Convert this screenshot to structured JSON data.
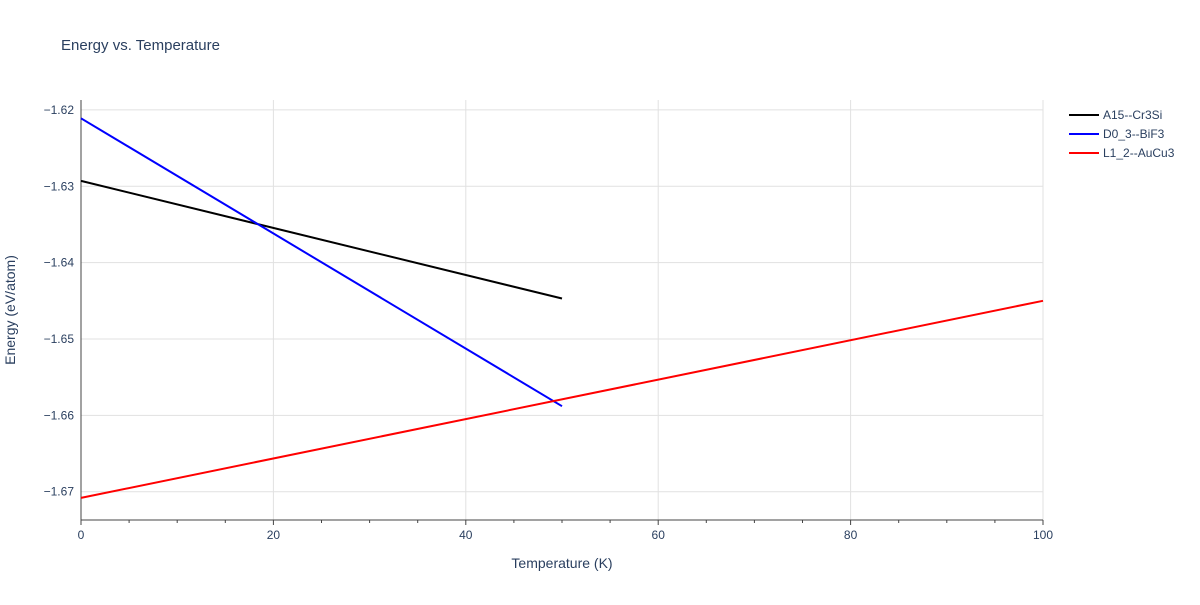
{
  "chart_data": {
    "type": "line",
    "title": "Energy vs. Temperature",
    "xlabel": "Temperature (K)",
    "ylabel": "Energy (eV/atom)",
    "xlim": [
      0,
      100
    ],
    "ylim": [
      -1.6737,
      -1.6187
    ],
    "x_ticks": [
      0,
      20,
      40,
      60,
      80,
      100
    ],
    "x_tick_labels": [
      "0",
      "20",
      "40",
      "60",
      "80",
      "100"
    ],
    "y_ticks": [
      -1.62,
      -1.63,
      -1.64,
      -1.65,
      -1.66,
      -1.67
    ],
    "y_tick_labels": [
      "−1.62",
      "−1.63",
      "−1.64",
      "−1.65",
      "−1.66",
      "−1.67"
    ],
    "grid": true,
    "legend_position": "top-right, outside plot",
    "series": [
      {
        "name": "A15--Cr3Si",
        "color": "#000000",
        "x": [
          0,
          50
        ],
        "y": [
          -1.6293,
          -1.6447
        ]
      },
      {
        "name": "D0_3--BiF3",
        "color": "#0000ff",
        "x": [
          0,
          50
        ],
        "y": [
          -1.6211,
          -1.6588
        ]
      },
      {
        "name": "L1_2--AuCu3",
        "color": "#ff0000",
        "x": [
          0,
          100
        ],
        "y": [
          -1.6708,
          -1.645
        ]
      }
    ]
  }
}
